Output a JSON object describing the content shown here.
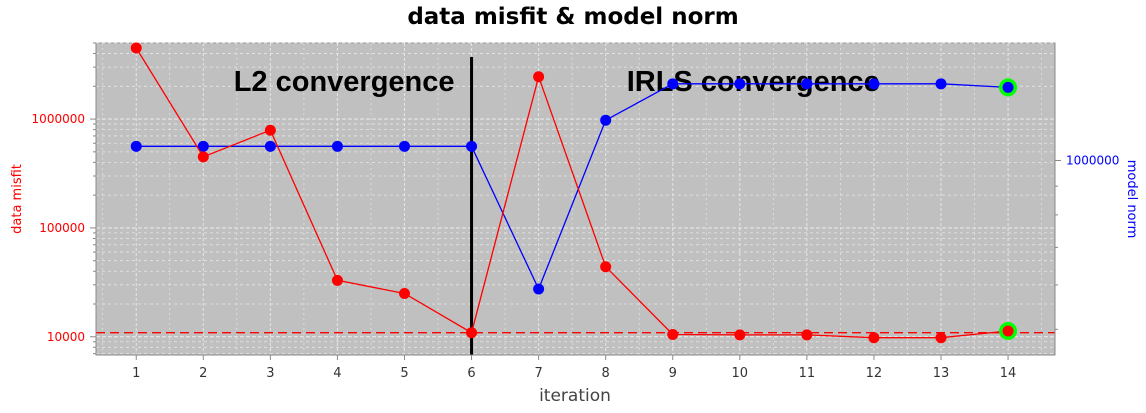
{
  "chart_data": {
    "type": "line",
    "title": "data misfit & model norm",
    "xlabel": "iteration",
    "ylabel_left": "data misfit",
    "ylabel_right": "model norm",
    "x": [
      1,
      2,
      3,
      4,
      5,
      6,
      7,
      8,
      9,
      10,
      11,
      12,
      13,
      14
    ],
    "xlim": [
      0.4,
      14.7
    ],
    "grid": true,
    "left_axis": {
      "scale": "log",
      "ylim": [
        6800,
        5000000
      ],
      "ticks": [
        10000,
        100000,
        1000000
      ],
      "tick_labels": [
        "10000",
        "100000",
        "1000000"
      ]
    },
    "right_axis": {
      "scale": "log",
      "ylim": [
        450000,
        1620000
      ],
      "ticks": [
        1000000
      ],
      "tick_labels": [
        "1000000"
      ]
    },
    "series": [
      {
        "name": "data misfit",
        "axis": "left",
        "color": "#ff0000",
        "values": [
          4500000,
          450000,
          790000,
          33000,
          25000,
          10900,
          2450000,
          44000,
          10500,
          10400,
          10400,
          9800,
          9800,
          11300
        ]
      },
      {
        "name": "model norm",
        "axis": "right",
        "color": "#0000ff",
        "values": [
          1060000,
          1060000,
          1060000,
          1060000,
          1060000,
          1060000,
          590000,
          1180000,
          1370000,
          1370000,
          1370000,
          1370000,
          1370000,
          1350000
        ]
      }
    ],
    "target_misfit": {
      "value": 10900,
      "color": "#ff0000",
      "style": "dashed"
    },
    "divider": {
      "x": 6,
      "color": "#000000"
    },
    "highlight": {
      "x": 14,
      "color": "#00ff00"
    },
    "annotations": [
      {
        "text": "L2 convergence",
        "x": 4.1
      },
      {
        "text": "IRLS convergence",
        "x": 10.2
      }
    ],
    "colors": {
      "plot_bg": "#c0c0c0",
      "grid": "#e6e6e6",
      "left_axis": "#ff0000",
      "right_axis": "#0000ff"
    }
  }
}
